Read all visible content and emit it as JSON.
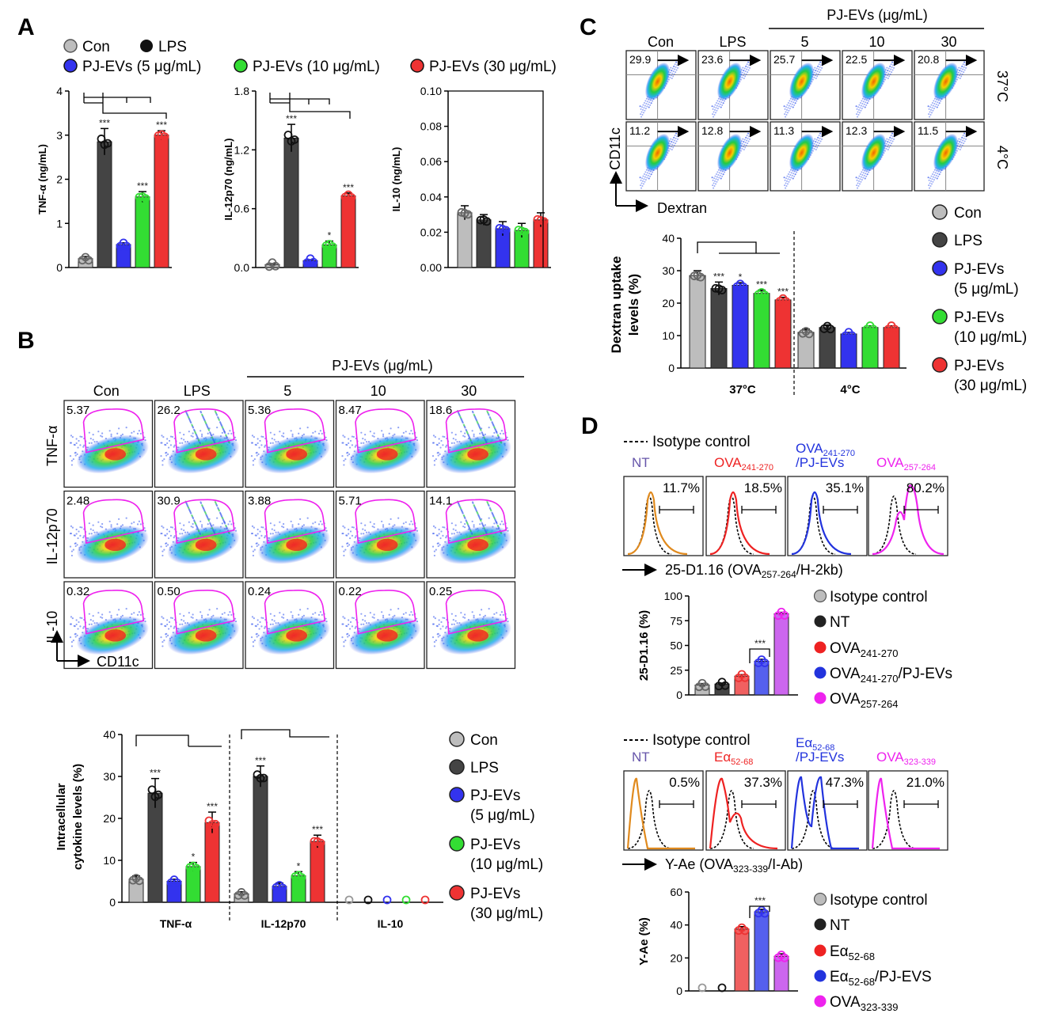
{
  "colors": {
    "con": "#bdbdbd",
    "lps": "#444444",
    "pj5": "#3333ee",
    "pj10": "#33dd33",
    "pj30": "#ee3333",
    "gate": "#ee22ee",
    "iso_orange": "#e08a1e",
    "ova257": "#ee22ee",
    "axis": "#000000"
  },
  "panel_labels": {
    "a": "A",
    "b": "B",
    "c": "C",
    "d": "D"
  },
  "legend_a": [
    "Con",
    "LPS",
    "PJ-EVs (5 μg/mL)",
    "PJ-EVs (10 μg/mL)",
    "PJ-EVs (30 μg/mL)"
  ],
  "legend_b": {
    "items": [
      {
        "line1": "Con",
        "line2": ""
      },
      {
        "line1": "LPS",
        "line2": ""
      },
      {
        "line1": "PJ-EVs",
        "line2": "(5 μg/mL)"
      },
      {
        "line1": "PJ-EVs",
        "line2": "(10 μg/mL)"
      },
      {
        "line1": "PJ-EVs",
        "line2": "(30 μg/mL)"
      }
    ]
  },
  "legend_c": {
    "items": [
      {
        "line1": "Con",
        "line2": ""
      },
      {
        "line1": "LPS",
        "line2": ""
      },
      {
        "line1": "PJ-EVs",
        "line2": "(5 μg/mL)"
      },
      {
        "line1": "PJ-EVs",
        "line2": "(10 μg/mL)"
      },
      {
        "line1": "PJ-EVs",
        "line2": "(30 μg/mL)"
      }
    ]
  },
  "sig": {
    "three": "***",
    "one": "*"
  },
  "flow_b": {
    "group_title": "PJ-EVs (μg/mL)",
    "cols": [
      "Con",
      "LPS",
      "5",
      "10",
      "30"
    ],
    "rows": [
      {
        "label": "TNF-α",
        "values": [
          "5.37",
          "26.2",
          "5.36",
          "8.47",
          "18.6"
        ]
      },
      {
        "label": "IL-12p70",
        "values": [
          "2.48",
          "30.9",
          "3.88",
          "5.71",
          "14.1"
        ]
      },
      {
        "label": "IL-10",
        "values": [
          "0.32",
          "0.50",
          "0.24",
          "0.22",
          "0.25"
        ]
      }
    ],
    "x_axis": "CD11c"
  },
  "flow_c": {
    "group_title": "PJ-EVs (μg/mL)",
    "cols": [
      "Con",
      "LPS",
      "5",
      "10",
      "30"
    ],
    "rows": [
      {
        "label": "37°C",
        "values": [
          "29.9",
          "23.6",
          "25.7",
          "22.5",
          "20.8"
        ]
      },
      {
        "label": "4°C",
        "values": [
          "11.2",
          "12.8",
          "11.3",
          "12.3",
          "11.5"
        ]
      }
    ],
    "x_axis": "Dextran",
    "y_axis": "CD11c"
  },
  "hist_d1": {
    "isotype_label": "Isotype control",
    "titles": [
      {
        "main": "NT",
        "sub": "",
        "main2": ""
      },
      {
        "main": "OVA",
        "sub": "241-270",
        "main2": ""
      },
      {
        "main": "OVA",
        "sub": "241-270",
        "main2": "/PJ-EVs"
      },
      {
        "main": "OVA",
        "sub": "257-264",
        "main2": ""
      }
    ],
    "values": [
      "11.7%",
      "18.5%",
      "35.1%",
      "80.2%"
    ],
    "x_axis_main": "25-D1.16 (OVA",
    "x_axis_sub": "257-264",
    "x_axis_end": "/H-2kb)"
  },
  "hist_d2": {
    "isotype_label": "Isotype control",
    "titles": [
      {
        "main": "NT",
        "sub": "",
        "main2": ""
      },
      {
        "main": "Eα",
        "sub": "52-68",
        "main2": ""
      },
      {
        "main": "Eα",
        "sub": "52-68",
        "main2": "/PJ-EVs"
      },
      {
        "main": "OVA",
        "sub": "323-339",
        "main2": ""
      }
    ],
    "values": [
      "0.5%",
      "37.3%",
      "47.3%",
      "21.0%"
    ],
    "x_axis_main": "Y-Ae (OVA",
    "x_axis_sub": "323-339",
    "x_axis_end": "/I-Ab)"
  },
  "legend_d1": [
    {
      "main": "Isotype control",
      "sub": ""
    },
    {
      "main": "NT",
      "sub": ""
    },
    {
      "main": "OVA",
      "sub": "241-270",
      "end": ""
    },
    {
      "main": "OVA",
      "sub": "241-270",
      "end": "/PJ-EVs"
    },
    {
      "main": "OVA",
      "sub": "257-264",
      "end": ""
    }
  ],
  "legend_d2": [
    {
      "main": "Isotype control",
      "sub": ""
    },
    {
      "main": "NT",
      "sub": ""
    },
    {
      "main": "Eα",
      "sub": "52-68",
      "end": ""
    },
    {
      "main": "Eα",
      "sub": "52-68",
      "end": "/PJ-EVS"
    },
    {
      "main": "OVA",
      "sub": "323-339",
      "end": ""
    }
  ],
  "chart_data": [
    {
      "id": "a_tnf",
      "type": "bar",
      "ylabel": "TNF-α (ng/mL)",
      "categories": [
        "Con",
        "LPS",
        "PJ-EVs (5 μg/mL)",
        "PJ-EVs (10 μg/mL)",
        "PJ-EVs (30 μg/mL)"
      ],
      "values": [
        0.2,
        2.85,
        0.52,
        1.6,
        3.0
      ],
      "errors": [
        0.05,
        0.3,
        0.04,
        0.12,
        0.1
      ],
      "ylim": [
        0,
        4
      ],
      "yticks": [
        "0",
        "1",
        "2",
        "3",
        "4"
      ]
    },
    {
      "id": "a_il12",
      "type": "bar",
      "ylabel": "IL-12p70 (ng/mL)",
      "categories": [
        "Con",
        "LPS",
        "PJ-EVs (5 μg/mL)",
        "PJ-EVs (10 μg/mL)",
        "PJ-EVs (30 μg/mL)"
      ],
      "values": [
        0.03,
        1.32,
        0.07,
        0.23,
        0.73
      ],
      "errors": [
        0.01,
        0.14,
        0.01,
        0.04,
        0.03
      ],
      "ylim": [
        0,
        1.8
      ],
      "yticks": [
        "0.0",
        "0.6",
        "1.2",
        "1.8"
      ]
    },
    {
      "id": "a_il10",
      "type": "bar",
      "ylabel": "IL-10 (ng/mL)",
      "categories": [
        "Con",
        "LPS",
        "PJ-EVs (5 μg/mL)",
        "PJ-EVs (10 μg/mL)",
        "PJ-EVs (30 μg/mL)"
      ],
      "values": [
        0.031,
        0.027,
        0.022,
        0.021,
        0.027
      ],
      "errors": [
        0.004,
        0.003,
        0.004,
        0.004,
        0.004
      ],
      "ylim": [
        0,
        0.1
      ],
      "yticks": [
        "0.00",
        "0.02",
        "0.04",
        "0.06",
        "0.08",
        "0.10"
      ]
    },
    {
      "id": "b_bar",
      "type": "bar",
      "ylabel_line1": "Intracellular",
      "ylabel_line2": "cytokine levels (%)",
      "groups": [
        "TNF-α",
        "IL-12p70",
        "IL-10"
      ],
      "series": [
        {
          "name": "Con",
          "values": [
            5.5,
            2,
            0.5
          ],
          "errors": [
            0.8,
            0.5,
            0.1
          ]
        },
        {
          "name": "LPS",
          "values": [
            26,
            30,
            0.5
          ],
          "errors": [
            3.5,
            2.5,
            0.1
          ]
        },
        {
          "name": "PJ-EVs (5 μg/mL)",
          "values": [
            5,
            3.8,
            0.3
          ],
          "errors": [
            0.5,
            0.8,
            0.1
          ]
        },
        {
          "name": "PJ-EVs (10 μg/mL)",
          "values": [
            8.5,
            6.3,
            0.3
          ],
          "errors": [
            1,
            1,
            0.1
          ]
        },
        {
          "name": "PJ-EVs (30 μg/mL)",
          "values": [
            19,
            14.5,
            0.3
          ],
          "errors": [
            2.5,
            1.5,
            0.1
          ]
        }
      ],
      "ylim": [
        0,
        40
      ],
      "yticks": [
        "0",
        "10",
        "20",
        "30",
        "40"
      ]
    },
    {
      "id": "c_bar",
      "type": "bar",
      "ylabel_line1": "Dextran uptake",
      "ylabel_line2": "levels (%)",
      "groups": [
        "37°C",
        "4°C"
      ],
      "series": [
        {
          "name": "Con",
          "values": [
            28.5,
            11
          ],
          "errors": [
            1.5,
            1
          ]
        },
        {
          "name": "LPS",
          "values": [
            24.5,
            12.5
          ],
          "errors": [
            2,
            0.8
          ]
        },
        {
          "name": "PJ-EVs (5 μg/mL)",
          "values": [
            25.5,
            10.5
          ],
          "errors": [
            0.8,
            0.5
          ]
        },
        {
          "name": "PJ-EVs (10 μg/mL)",
          "values": [
            23,
            12.5
          ],
          "errors": [
            1,
            0.5
          ]
        },
        {
          "name": "PJ-EVs (30 μg/mL)",
          "values": [
            21,
            12.5
          ],
          "errors": [
            0.8,
            0.5
          ]
        }
      ],
      "ylim": [
        0,
        40
      ],
      "yticks": [
        "0",
        "10",
        "20",
        "30",
        "40"
      ]
    },
    {
      "id": "d_bar1",
      "type": "bar",
      "ylabel": "25-D1.16 (%)",
      "categories": [
        "Isotype control",
        "NT",
        "OVA241-270",
        "OVA241-270/PJ-EVs",
        "OVA257-264"
      ],
      "values": [
        10,
        11,
        19,
        34,
        82
      ],
      "errors": [
        1.5,
        1,
        1.5,
        2,
        1.5
      ],
      "ylim": [
        0,
        100
      ],
      "yticks": [
        "0",
        "25",
        "50",
        "75",
        "100"
      ]
    },
    {
      "id": "d_bar2",
      "type": "bar",
      "ylabel": "Y-Ae (%)",
      "categories": [
        "Isotype control",
        "NT",
        "Eα52-68",
        "Eα52-68/PJ-EVS",
        "OVA323-339"
      ],
      "values": [
        0.3,
        0.3,
        37.5,
        48,
        21
      ],
      "errors": [
        0.2,
        0.2,
        1.5,
        1.5,
        1.5
      ],
      "ylim": [
        0,
        60
      ],
      "yticks": [
        "0",
        "20",
        "40",
        "60"
      ]
    }
  ]
}
